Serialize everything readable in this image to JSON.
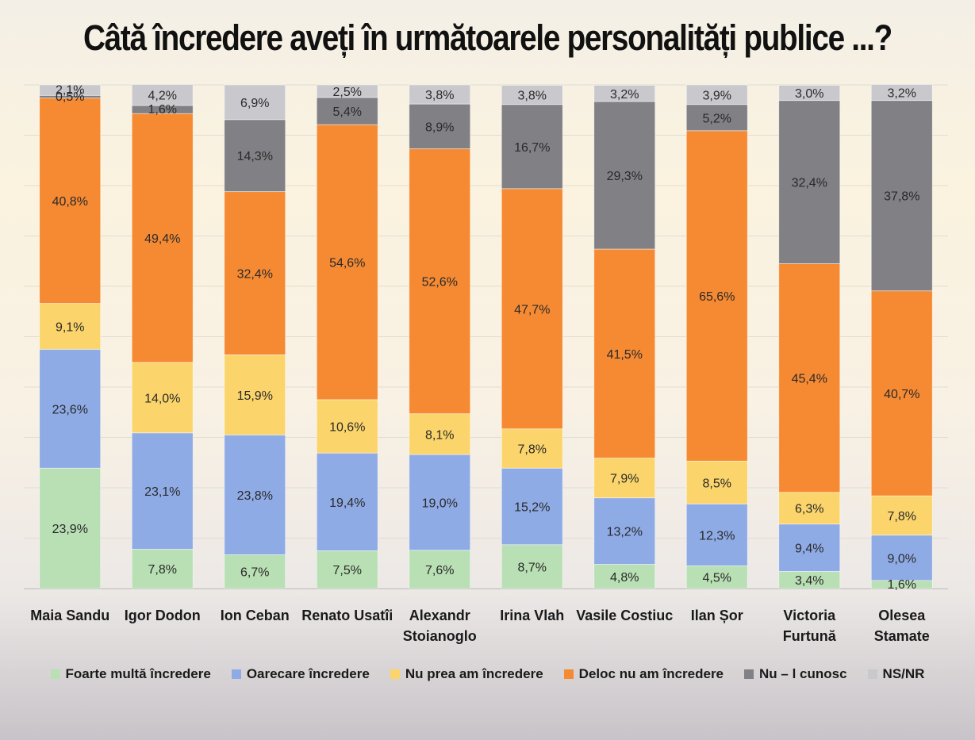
{
  "chart_data": {
    "type": "bar",
    "stacked": true,
    "title": "Câtă încredere aveți în următoarele personalități publice ...?",
    "categories": [
      [
        "Maia Sandu"
      ],
      [
        "Igor Dodon"
      ],
      [
        "Ion Ceban"
      ],
      [
        "Renato Usatîi"
      ],
      [
        "Alexandr",
        "Stoianoglo"
      ],
      [
        "Irina Vlah"
      ],
      [
        "Vasile Costiuc"
      ],
      [
        "Ilan Șor"
      ],
      [
        "Victoria",
        "Furtună"
      ],
      [
        "Olesea",
        "Stamate"
      ]
    ],
    "ylim": [
      0,
      100
    ],
    "legend_position": "bottom",
    "series": [
      {
        "name": "Foarte multă încredere",
        "color": "#b9dfb4",
        "values": [
          23.9,
          7.8,
          6.7,
          7.5,
          7.6,
          8.7,
          4.8,
          4.5,
          3.4,
          1.6
        ],
        "labels": [
          "23,9%",
          "7,8%",
          "6,7%",
          "7,5%",
          "7,6%",
          "8,7%",
          "4,8%",
          "4,5%",
          "3,4%",
          "1,6%"
        ]
      },
      {
        "name": "Oarecare încredere",
        "color": "#8fabe6",
        "values": [
          23.6,
          23.1,
          23.8,
          19.4,
          19.0,
          15.2,
          13.2,
          12.3,
          9.4,
          9.0
        ],
        "labels": [
          "23,6%",
          "23,1%",
          "23,8%",
          "19,4%",
          "19,0%",
          "15,2%",
          "13,2%",
          "12,3%",
          "9,4%",
          "9,0%"
        ]
      },
      {
        "name": "Nu prea am încredere",
        "color": "#fbd56b",
        "values": [
          9.1,
          14.0,
          15.9,
          10.6,
          8.1,
          7.8,
          7.9,
          8.5,
          6.3,
          7.8
        ],
        "labels": [
          "9,1%",
          "14,0%",
          "15,9%",
          "10,6%",
          "8,1%",
          "7,8%",
          "7,9%",
          "8,5%",
          "6,3%",
          "7,8%"
        ]
      },
      {
        "name": "Deloc nu am încredere",
        "color": "#f58a33",
        "values": [
          40.8,
          49.4,
          32.4,
          54.6,
          52.6,
          47.7,
          41.5,
          65.6,
          45.4,
          40.7
        ],
        "labels": [
          "40,8%",
          "49,4%",
          "32,4%",
          "54,6%",
          "52,6%",
          "47,7%",
          "41,5%",
          "65,6%",
          "45,4%",
          "40,7%"
        ]
      },
      {
        "name": "Nu – l cunosc",
        "color": "#808085",
        "values": [
          0.5,
          1.6,
          14.3,
          5.4,
          8.9,
          16.7,
          29.3,
          5.2,
          32.4,
          37.8
        ],
        "labels": [
          "0,5%",
          "1,6%",
          "14,3%",
          "5,4%",
          "8,9%",
          "16,7%",
          "29,3%",
          "5,2%",
          "32,4%",
          "37,8%"
        ]
      },
      {
        "name": "NS/NR",
        "color": "#c9c9cd",
        "values": [
          2.1,
          4.2,
          6.9,
          2.5,
          3.8,
          3.8,
          3.2,
          3.9,
          3.0,
          3.2
        ],
        "labels": [
          "2,1%",
          "4,2%",
          "6,9%",
          "2,5%",
          "3,8%",
          "3,8%",
          "3,2%",
          "3,9%",
          "3,0%",
          "3,2%"
        ]
      }
    ]
  }
}
